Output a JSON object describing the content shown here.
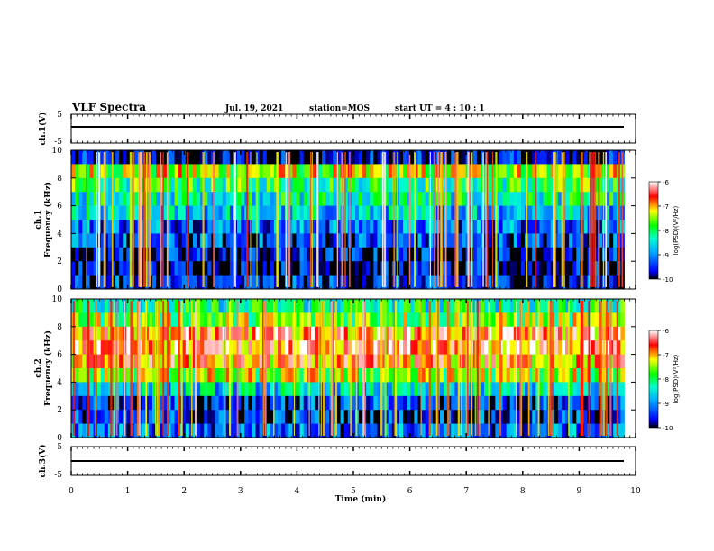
{
  "header": {
    "title": "VLF Spectra",
    "date": "Jul. 19, 2021",
    "station": "station=MOS",
    "start": "start UT =  4 : 10 : 1"
  },
  "panels": {
    "ch1_wave": {
      "ylabel": "ch.1(V)",
      "yticks": [
        "5",
        "-5"
      ]
    },
    "ch1_spec": {
      "ylabel_a": "ch.1",
      "ylabel_b": "Frequency (kHz)",
      "yticks": [
        "0",
        "2",
        "4",
        "6",
        "8",
        "10"
      ]
    },
    "ch2_spec": {
      "ylabel_a": "ch.2",
      "ylabel_b": "Frequency (kHz)",
      "yticks": [
        "0",
        "2",
        "4",
        "6",
        "8",
        "10"
      ]
    },
    "ch3_wave": {
      "ylabel": "ch.3(V)",
      "yticks": [
        "5",
        "-5"
      ]
    }
  },
  "colorbar": {
    "label": "log(PSD)(V²/Hz)",
    "ticks": [
      "-6",
      "-7",
      "-8",
      "-9",
      "-10"
    ],
    "range": [
      -10,
      -6
    ],
    "stops": [
      "#000000",
      "#0000ff",
      "#00aaff",
      "#00ffcc",
      "#00ff00",
      "#ffff00",
      "#ff0000",
      "#ffffff"
    ]
  },
  "chart_data": [
    {
      "type": "line",
      "panel": "ch.1(V)",
      "x_range": [
        0,
        10
      ],
      "ylim": [
        -5,
        5
      ],
      "ytick_values": [
        5,
        -5
      ],
      "x": [
        0,
        9.8
      ],
      "y": [
        0,
        0
      ]
    },
    {
      "type": "heatmap",
      "panel": "ch.1 Frequency (kHz)",
      "x_range": [
        0,
        9.8
      ],
      "ylim": [
        0,
        10
      ],
      "ytick_values": [
        0,
        2,
        4,
        6,
        8,
        10
      ],
      "rows": [
        {
          "freq": 9.5,
          "level": -9.8
        },
        {
          "freq": 8.5,
          "level": -7.4
        },
        {
          "freq": 7.5,
          "level": -8.0
        },
        {
          "freq": 6.5,
          "level": -8.3
        },
        {
          "freq": 5.5,
          "level": -8.7
        },
        {
          "freq": 4.5,
          "level": -9.1
        },
        {
          "freq": 3.5,
          "level": -9.4
        },
        {
          "freq": 2.5,
          "level": -9.7
        },
        {
          "freq": 1.5,
          "level": -9.8
        },
        {
          "freq": 0.5,
          "level": -9.6
        }
      ],
      "spikes_per_min": 9,
      "spike_level": -6.6
    },
    {
      "type": "heatmap",
      "panel": "ch.2 Frequency (kHz)",
      "x_range": [
        0,
        9.8
      ],
      "ylim": [
        0,
        10
      ],
      "ytick_values": [
        0,
        2,
        4,
        6,
        8,
        10
      ],
      "rows": [
        {
          "freq": 9.5,
          "level": -8.2
        },
        {
          "freq": 8.5,
          "level": -7.6
        },
        {
          "freq": 7.5,
          "level": -6.7
        },
        {
          "freq": 6.5,
          "level": -6.6
        },
        {
          "freq": 5.5,
          "level": -6.9
        },
        {
          "freq": 4.5,
          "level": -7.5
        },
        {
          "freq": 3.5,
          "level": -8.6
        },
        {
          "freq": 2.5,
          "level": -9.4
        },
        {
          "freq": 1.5,
          "level": -9.5
        },
        {
          "freq": 0.5,
          "level": -9.2
        }
      ],
      "spikes_per_min": 9,
      "spike_level": -6.8
    },
    {
      "type": "line",
      "panel": "ch.3(V)",
      "x_range": [
        0,
        10
      ],
      "ylim": [
        -5,
        5
      ],
      "ytick_values": [
        5,
        -5
      ],
      "x": [
        0,
        9.8
      ],
      "y": [
        0,
        0
      ]
    }
  ],
  "xaxis": {
    "label": "Time (min)",
    "range": [
      0,
      10
    ],
    "ticks": [
      "0",
      "1",
      "2",
      "3",
      "4",
      "5",
      "6",
      "7",
      "8",
      "9",
      "10"
    ]
  }
}
